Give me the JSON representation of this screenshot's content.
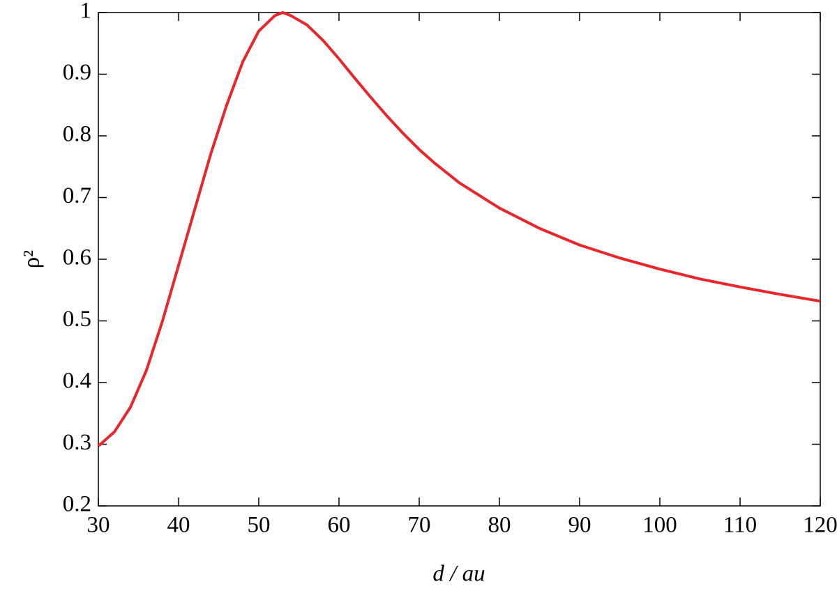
{
  "chart_data": {
    "type": "line",
    "x_label": "d / au",
    "y_label": "ρ²",
    "x": [
      30,
      32,
      34,
      36,
      38,
      40,
      42,
      44,
      46,
      48,
      50,
      52,
      53,
      54,
      56,
      58,
      60,
      62,
      64,
      66,
      68,
      70,
      72,
      75,
      80,
      85,
      90,
      95,
      100,
      105,
      110,
      115,
      120
    ],
    "series": [
      {
        "color": "#e8262b",
        "values": [
          0.297,
          0.32,
          0.36,
          0.42,
          0.5,
          0.59,
          0.68,
          0.77,
          0.85,
          0.92,
          0.97,
          0.995,
          1.0,
          0.995,
          0.98,
          0.955,
          0.925,
          0.893,
          0.862,
          0.832,
          0.804,
          0.778,
          0.755,
          0.724,
          0.683,
          0.65,
          0.623,
          0.602,
          0.584,
          0.568,
          0.555,
          0.543,
          0.532
        ]
      }
    ],
    "xlim": [
      30,
      120
    ],
    "ylim": [
      0.2,
      1
    ],
    "xticks": [
      30,
      40,
      50,
      60,
      70,
      80,
      90,
      100,
      110,
      120
    ],
    "yticks": [
      0.2,
      0.3,
      0.4,
      0.5,
      0.6,
      0.7,
      0.8,
      0.9,
      1
    ]
  }
}
